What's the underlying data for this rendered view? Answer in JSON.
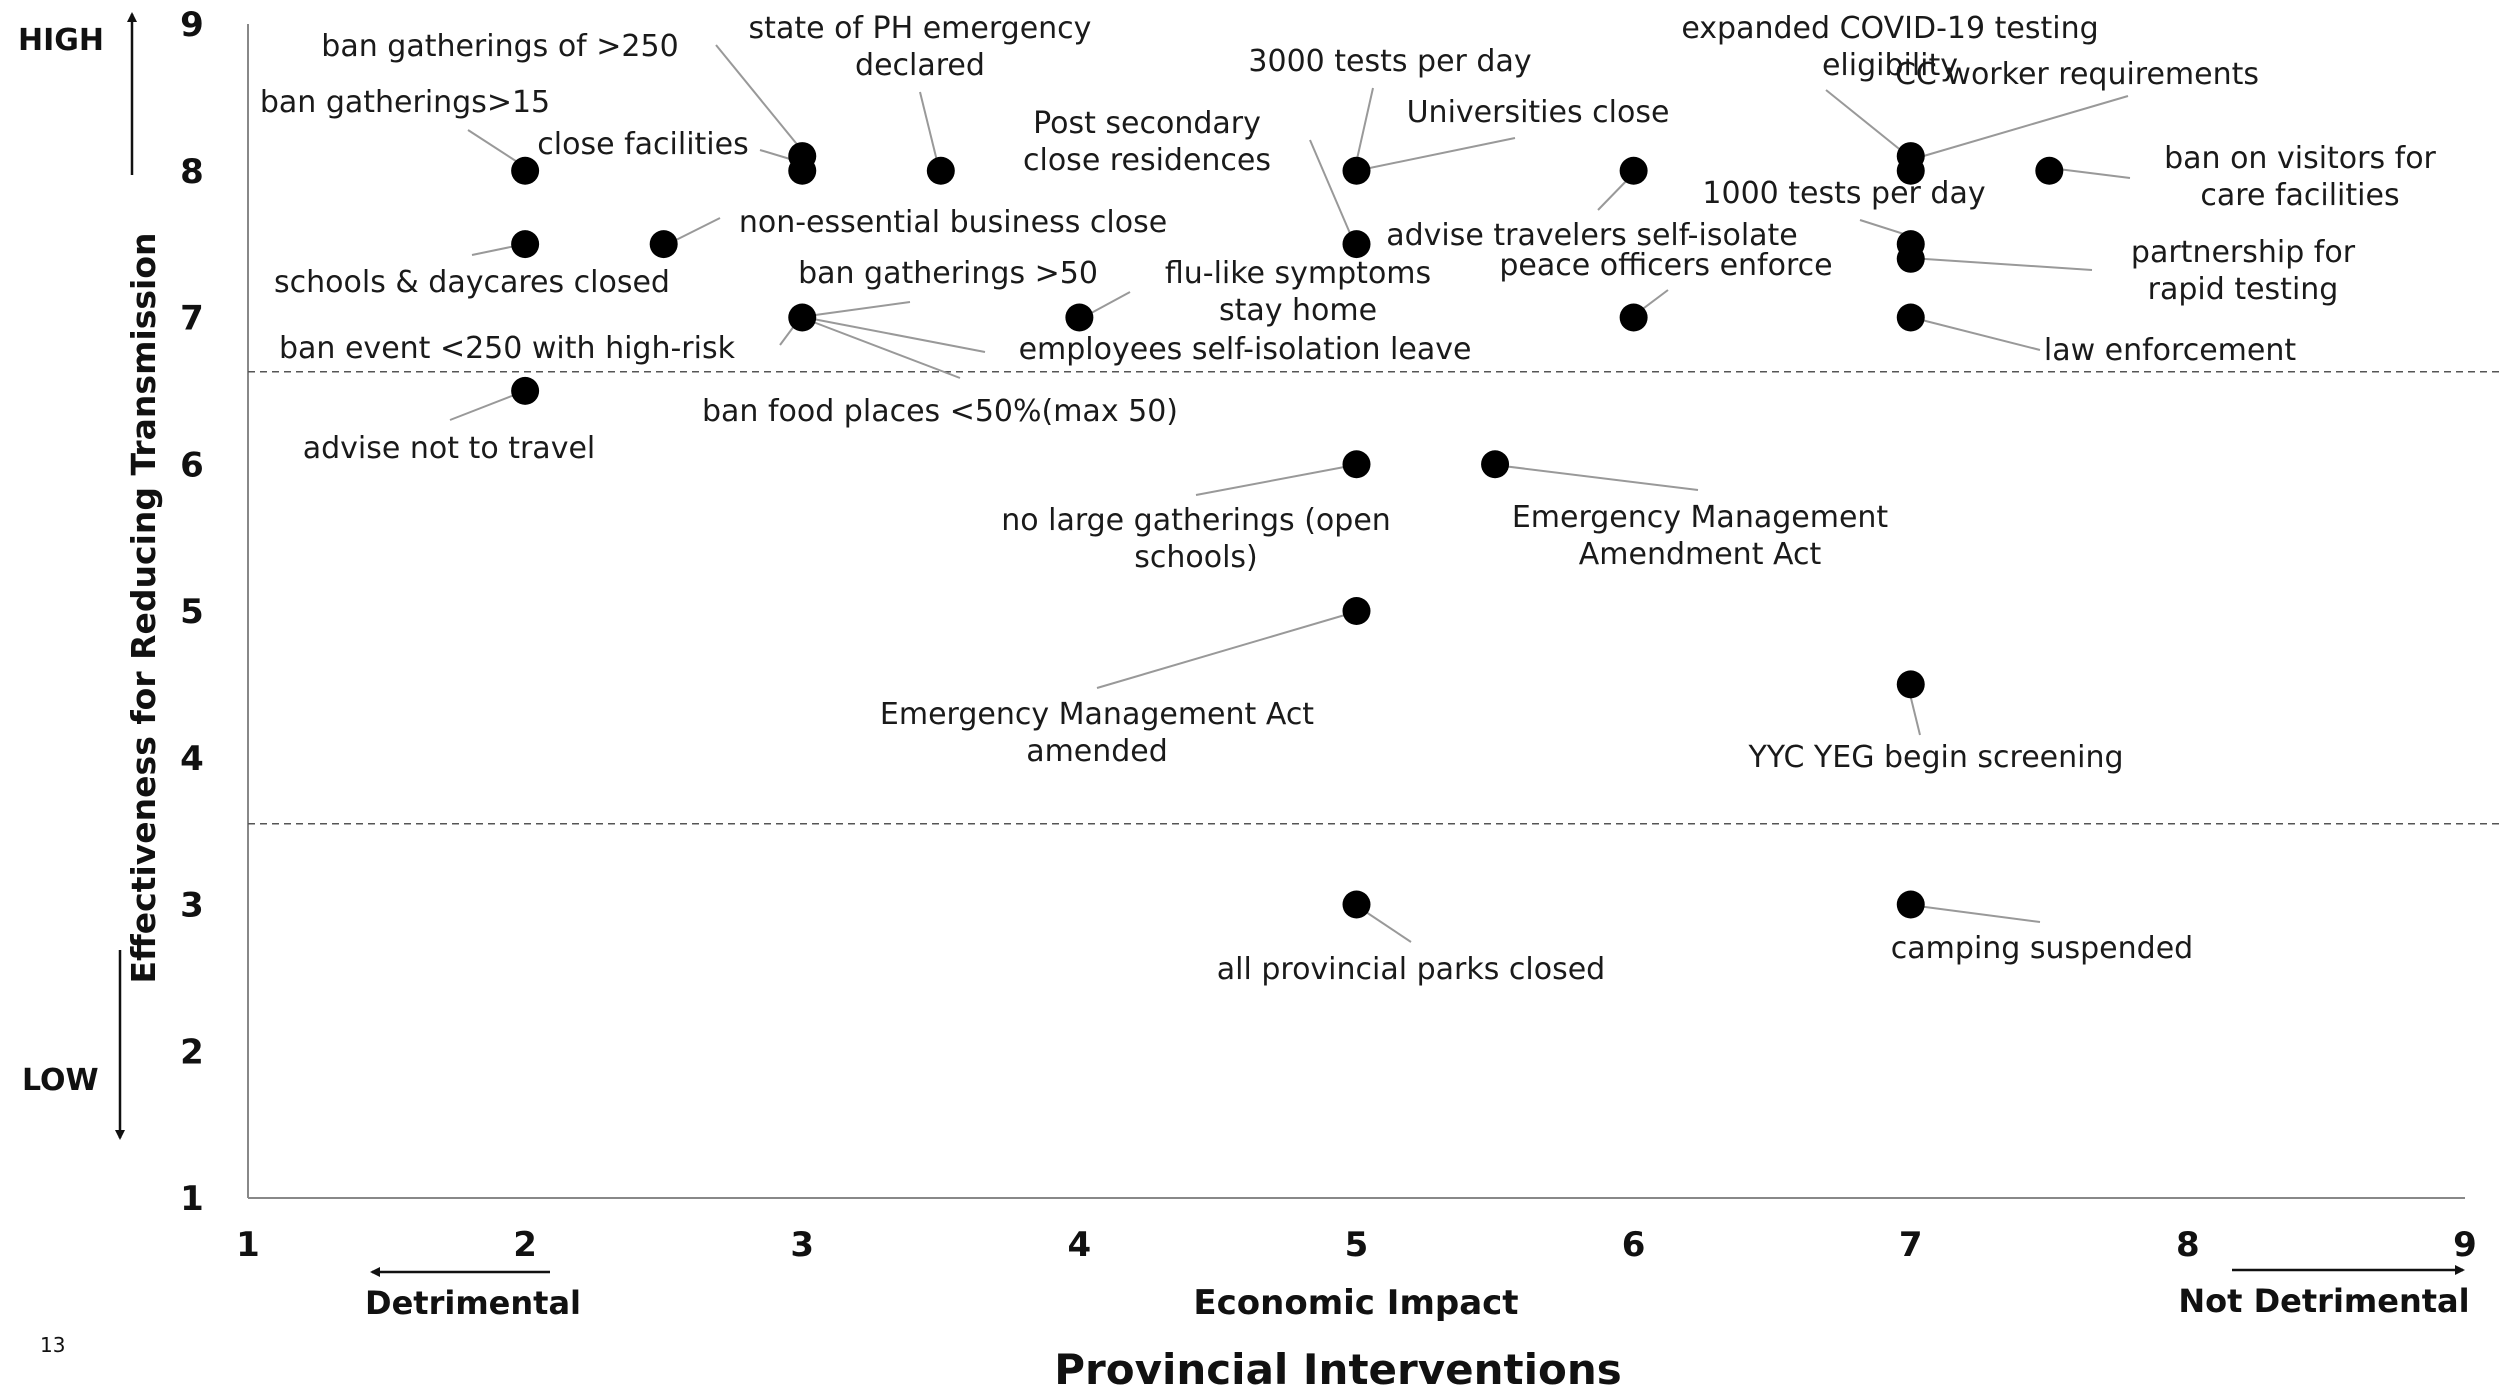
{
  "chart_data": {
    "type": "scatter",
    "title": "Provincial Interventions",
    "xlabel": "Economic Impact",
    "ylabel": "Effectiveness for Reducing Transmission",
    "x_low_label": "Detrimental",
    "x_high_label": "Not Detrimental",
    "y_high_label": "HIGH",
    "y_low_label": "LOW",
    "xlim": [
      1,
      9
    ],
    "ylim": [
      1,
      9
    ],
    "x_ticks": [
      "1",
      "2",
      "3",
      "4",
      "5",
      "6",
      "7",
      "8",
      "9"
    ],
    "y_ticks": [
      "1",
      "2",
      "3",
      "4",
      "5",
      "6",
      "7",
      "8",
      "9"
    ],
    "reference_lines_y": [
      6.63,
      3.55
    ],
    "slide_number": "13",
    "points": [
      {
        "x": 2,
        "y": 8,
        "labels": [
          "ban gatherings>15"
        ]
      },
      {
        "x": 3,
        "y": 8.1,
        "labels": [
          "ban gatherings of >250"
        ]
      },
      {
        "x": 3,
        "y": 8,
        "labels": [
          "close facilities"
        ]
      },
      {
        "x": 3.5,
        "y": 8,
        "labels": [
          "state of PH emergency",
          "declared"
        ]
      },
      {
        "x": 2,
        "y": 7.5,
        "labels": [
          "schools & daycares closed"
        ]
      },
      {
        "x": 2.5,
        "y": 7.5,
        "labels": [
          "non-essential business close"
        ]
      },
      {
        "x": 3,
        "y": 7,
        "labels": [
          "ban event <250 with high-risk"
        ]
      },
      {
        "x": 3,
        "y": 7,
        "labels": [
          "ban gatherings >50"
        ]
      },
      {
        "x": 3,
        "y": 7,
        "labels": [
          "employees self-isolation leave"
        ]
      },
      {
        "x": 3,
        "y": 7,
        "labels": [
          "ban food places <50%(max 50)"
        ]
      },
      {
        "x": 2,
        "y": 6.5,
        "labels": [
          "advise not to travel"
        ]
      },
      {
        "x": 4,
        "y": 7,
        "labels": [
          "flu-like symptoms",
          "stay home"
        ]
      },
      {
        "x": 5,
        "y": 8,
        "labels": [
          "3000 tests per day"
        ]
      },
      {
        "x": 5,
        "y": 8,
        "labels": [
          "Universities close"
        ]
      },
      {
        "x": 5,
        "y": 7.5,
        "labels": [
          "Post secondary",
          "close residences"
        ]
      },
      {
        "x": 6,
        "y": 8,
        "labels": [
          "advise travelers self-isolate"
        ]
      },
      {
        "x": 6,
        "y": 7,
        "labels": [
          "peace officers enforce"
        ]
      },
      {
        "x": 7,
        "y": 8.1,
        "labels": [
          "expanded COVID-19 testing",
          "eligibility"
        ]
      },
      {
        "x": 7,
        "y": 8,
        "labels": [
          "CC worker requirements"
        ]
      },
      {
        "x": 7.5,
        "y": 8,
        "labels": [
          "ban on visitors for",
          "care facilities"
        ]
      },
      {
        "x": 7,
        "y": 7.5,
        "labels": [
          "1000 tests per day"
        ]
      },
      {
        "x": 7,
        "y": 7.4,
        "labels": [
          "partnership for",
          "rapid testing"
        ]
      },
      {
        "x": 7,
        "y": 7,
        "labels": [
          "law enforcement"
        ]
      },
      {
        "x": 5,
        "y": 6,
        "labels": [
          "no large gatherings (open",
          "schools)"
        ]
      },
      {
        "x": 5.5,
        "y": 6,
        "labels": [
          "Emergency Management",
          "Amendment Act"
        ]
      },
      {
        "x": 5,
        "y": 5,
        "labels": [
          "Emergency Management Act",
          "amended"
        ]
      },
      {
        "x": 7,
        "y": 4.5,
        "labels": [
          "YYC YEG begin screening"
        ]
      },
      {
        "x": 5,
        "y": 3,
        "labels": [
          "all provincial parks closed"
        ]
      },
      {
        "x": 7,
        "y": 3,
        "labels": [
          "camping suspended"
        ]
      }
    ]
  }
}
